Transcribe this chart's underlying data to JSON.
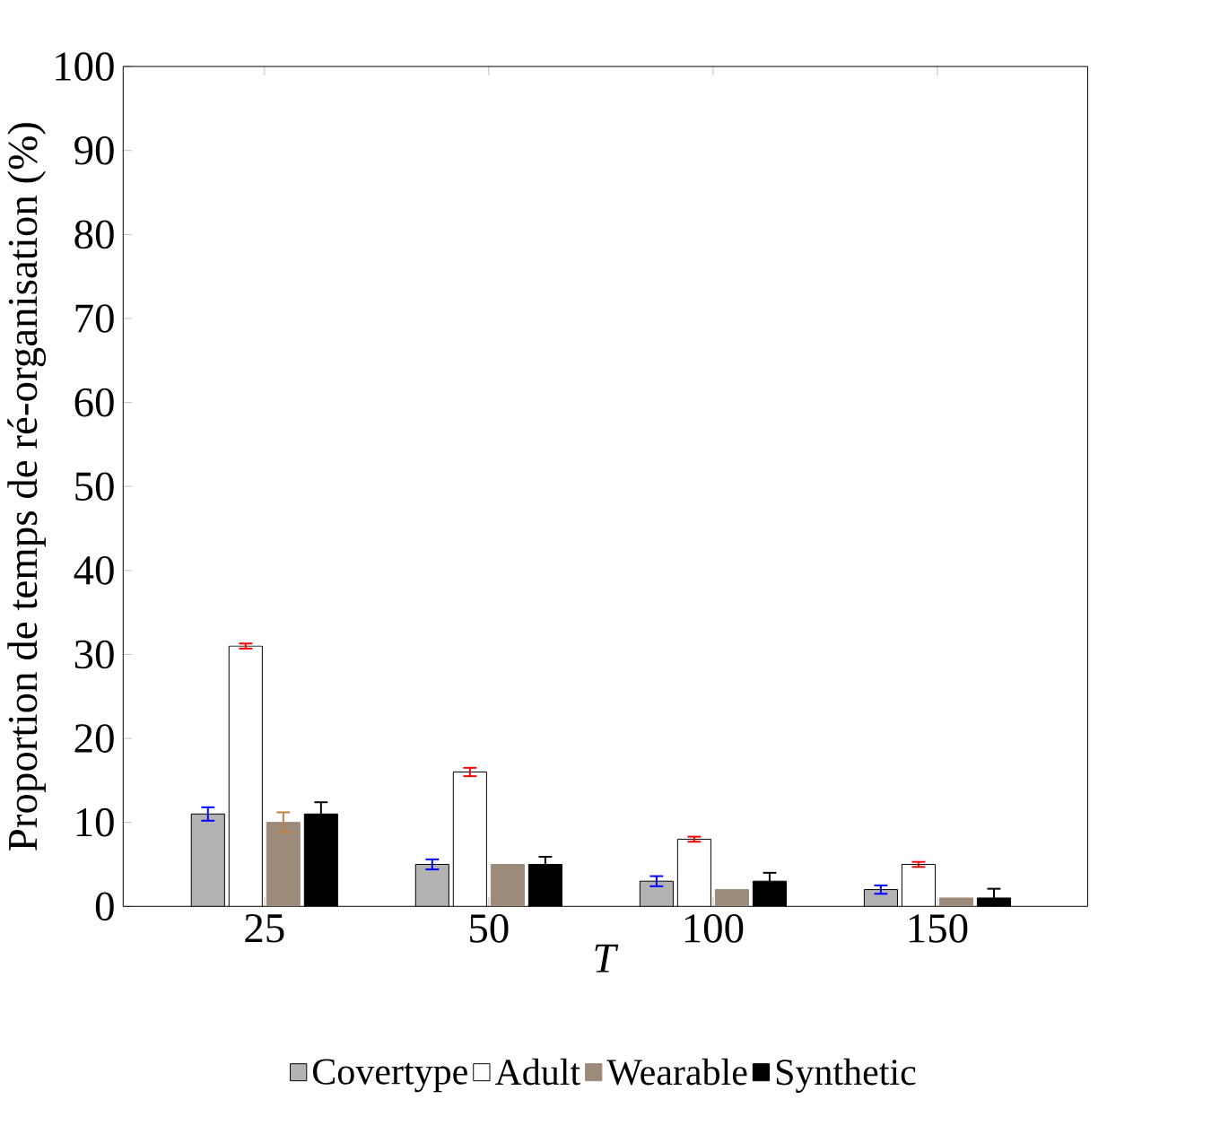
{
  "chart_data": {
    "type": "bar",
    "xlabel": "*T*",
    "ylabel": "Proportion de temps de ré-organisation (%)",
    "categories": [
      "25",
      "50",
      "100",
      "150"
    ],
    "series": [
      {
        "name": "Covertype",
        "color": "#b3b3b3",
        "values": [
          11,
          5,
          3,
          2
        ],
        "errors": [
          0.8,
          0.6,
          0.6,
          0.5
        ]
      },
      {
        "name": "Adult",
        "color": "#ffffff",
        "values": [
          31,
          16,
          8,
          5
        ],
        "errors": [
          0.3,
          0.5,
          0.3,
          0.3
        ]
      },
      {
        "name": "Wearable",
        "color": "#9c8b7a",
        "values": [
          10,
          5,
          2,
          1
        ],
        "errors": [
          1.2,
          null,
          null,
          null
        ]
      },
      {
        "name": "Synthetic",
        "color": "#000000",
        "values": [
          11,
          5,
          3,
          1
        ],
        "errors": [
          1.4,
          0.9,
          1.0,
          1.1
        ]
      }
    ],
    "ylim": [
      0,
      100
    ],
    "yticks": [
      0,
      10,
      20,
      30,
      40,
      50,
      60,
      70,
      80,
      90,
      100
    ],
    "legend": "bottom",
    "grid": false
  }
}
